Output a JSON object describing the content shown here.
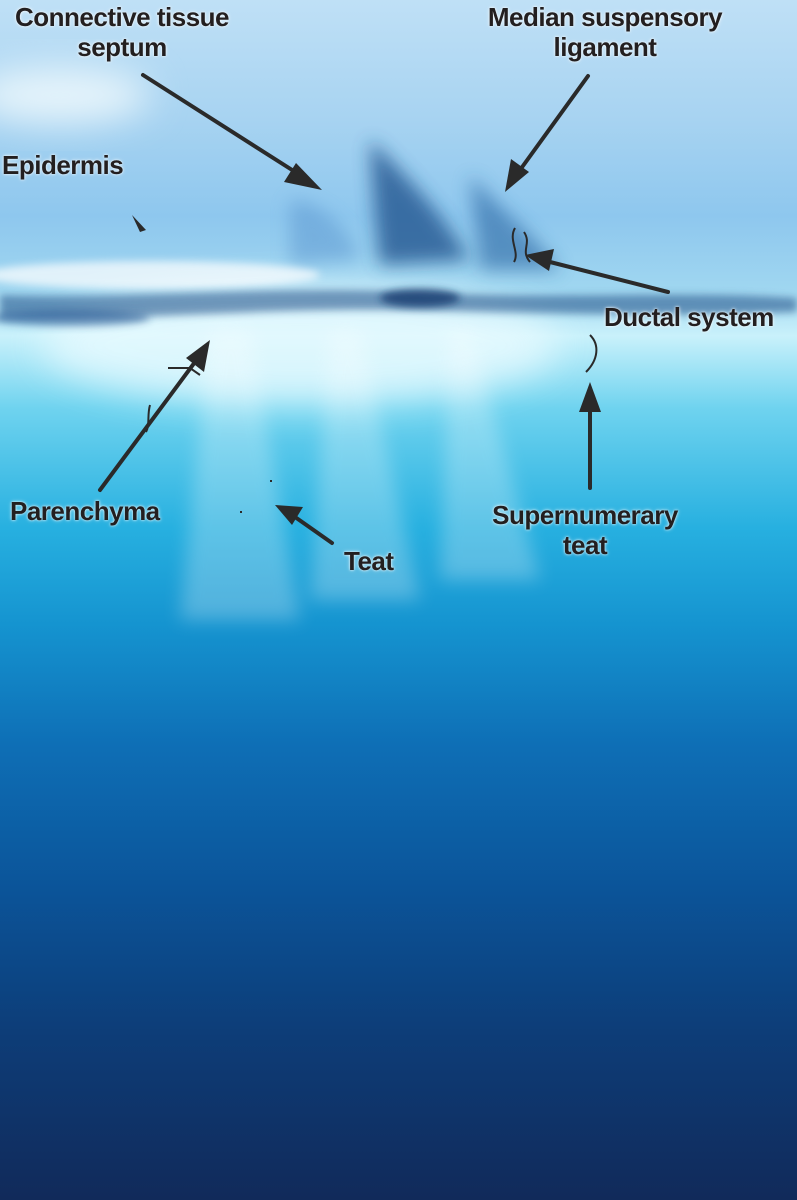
{
  "labels": {
    "connective_tissue_septum": "Connective tissue\nseptum",
    "median_suspensory_ligament": "Median suspensory\nligament",
    "epidermis": "Epidermis",
    "ductal_system": "Ductal system",
    "parenchyma": "Parenchyma",
    "teat": "Teat",
    "supernumerary_teat": "Supernumerary\nteat"
  },
  "colors": {
    "label_text": "#231f20",
    "arrow": "#2a2a2a"
  }
}
